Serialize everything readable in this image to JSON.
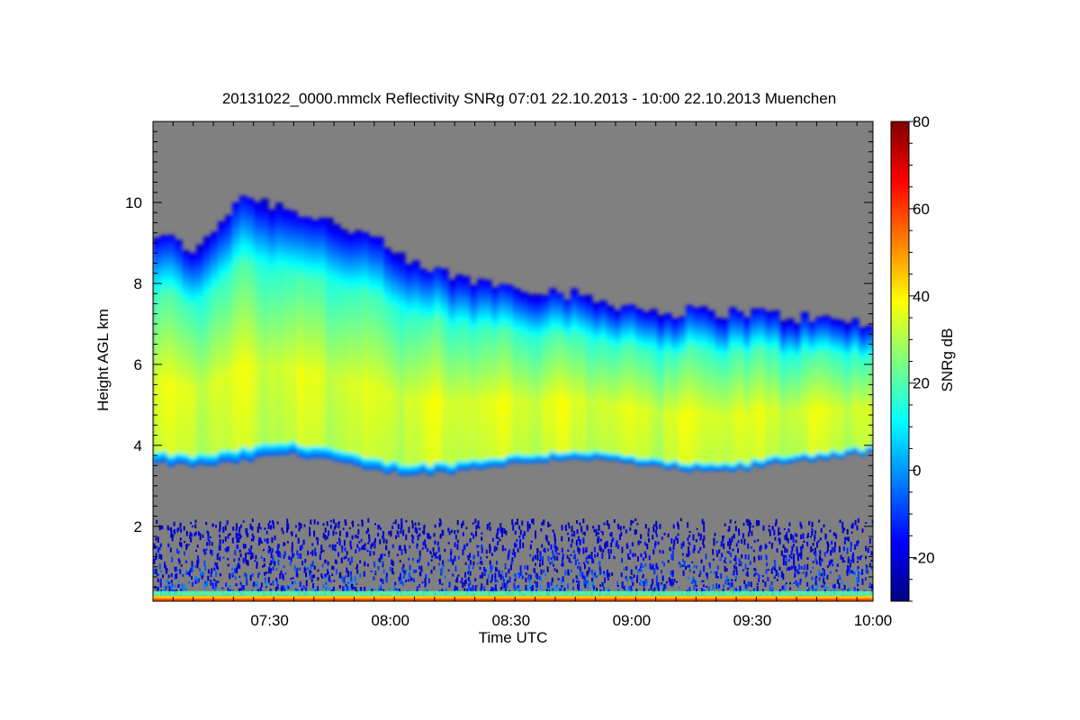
{
  "chart_data": {
    "type": "heatmap",
    "title": "20131022_0000.mmclx Reflectivity SNRg   07:01 22.10.2013 - 10:00 22.10.2013 Muenchen",
    "xlabel": "Time UTC",
    "ylabel": "Height AGL km",
    "colorbar_label": "SNRg dB",
    "x_tick_labels": [
      "07:30",
      "08:00",
      "08:30",
      "09:00",
      "09:30",
      "10:00"
    ],
    "x_tick_values_min": [
      450,
      480,
      510,
      540,
      570,
      600
    ],
    "xlim_min": [
      421,
      600
    ],
    "y_ticks": [
      2,
      4,
      6,
      8,
      10
    ],
    "ylim_km": [
      0.15,
      12.0
    ],
    "colorbar_ticks": [
      -20,
      0,
      20,
      40,
      60,
      80
    ],
    "colorbar_range": [
      -30,
      80
    ],
    "no_data_color": "#808080",
    "colormap": [
      "#00007f",
      "#0000ff",
      "#007fff",
      "#00ffff",
      "#7fff7f",
      "#ffff00",
      "#ff7f00",
      "#ff0000",
      "#7f0000"
    ],
    "cloud": {
      "base_km": [
        3.55,
        3.5,
        3.6,
        3.8,
        3.7,
        3.4,
        3.3,
        3.35,
        3.5,
        3.6,
        3.7,
        3.6,
        3.45,
        3.35,
        3.4,
        3.6,
        3.7,
        3.8
      ],
      "top_km": [
        9.2,
        8.8,
        10.2,
        9.9,
        9.6,
        9.2,
        8.5,
        8.2,
        8.0,
        7.9,
        7.7,
        7.5,
        7.3,
        7.3,
        7.3,
        7.2,
        7.1,
        7.0
      ],
      "core_snr_db": 35,
      "edge_snr_db": -10,
      "top_snr_db": -20
    },
    "surface_layer": {
      "height_km": [
        0.15,
        0.4
      ],
      "snr_db": 45
    },
    "boundary_clutter": {
      "height_km": [
        0.2,
        2.2
      ],
      "snr_db": [
        -25,
        5
      ]
    }
  }
}
